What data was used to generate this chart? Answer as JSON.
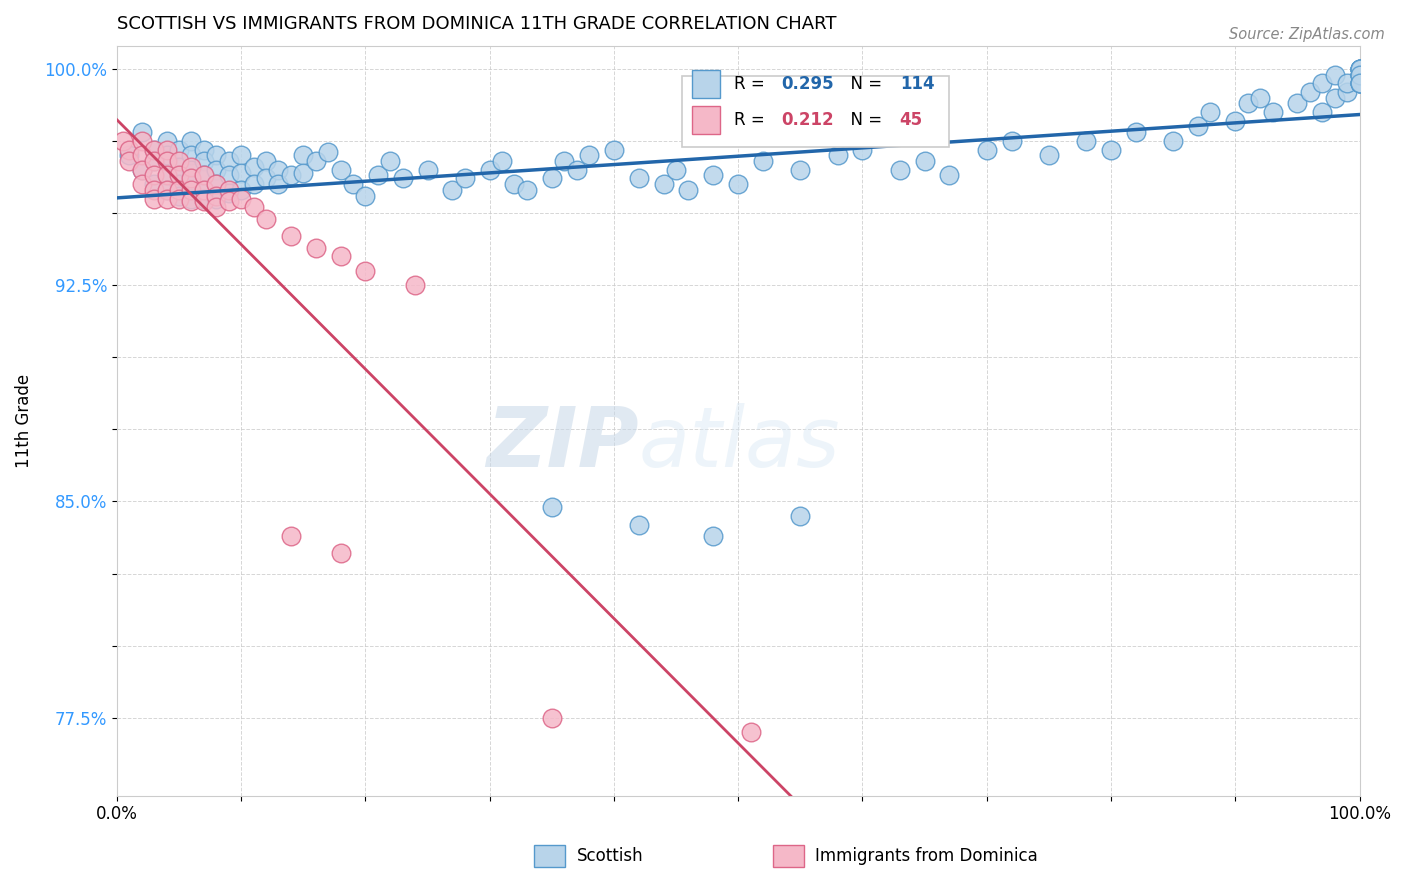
{
  "title": "SCOTTISH VS IMMIGRANTS FROM DOMINICA 11TH GRADE CORRELATION CHART",
  "source_text": "Source: ZipAtlas.com",
  "ylabel": "11th Grade",
  "xlim": [
    0.0,
    1.0
  ],
  "ylim": [
    0.748,
    1.008
  ],
  "ytick_vals": [
    0.775,
    0.8,
    0.825,
    0.85,
    0.875,
    0.9,
    0.925,
    0.95,
    0.975,
    1.0
  ],
  "ytick_labels": [
    "77.5%",
    "",
    "",
    "85.0%",
    "",
    "",
    "92.5%",
    "",
    "",
    "100.0%"
  ],
  "legend_blue_label": "Scottish",
  "legend_pink_label": "Immigrants from Dominica",
  "r_blue": 0.295,
  "n_blue": 114,
  "r_pink": 0.212,
  "n_pink": 45,
  "blue_color": "#b8d4ea",
  "blue_edge_color": "#5599cc",
  "blue_line_color": "#2266aa",
  "pink_color": "#f5b8c8",
  "pink_edge_color": "#dd6688",
  "pink_line_color": "#cc4466",
  "watermark_zip": "ZIP",
  "watermark_atlas": "atlas",
  "blue_scatter_x": [
    0.01,
    0.02,
    0.02,
    0.03,
    0.03,
    0.03,
    0.04,
    0.04,
    0.04,
    0.04,
    0.05,
    0.05,
    0.05,
    0.05,
    0.06,
    0.06,
    0.06,
    0.06,
    0.06,
    0.07,
    0.07,
    0.07,
    0.07,
    0.07,
    0.08,
    0.08,
    0.08,
    0.08,
    0.09,
    0.09,
    0.09,
    0.1,
    0.1,
    0.1,
    0.11,
    0.11,
    0.12,
    0.12,
    0.13,
    0.13,
    0.14,
    0.15,
    0.15,
    0.16,
    0.17,
    0.18,
    0.19,
    0.2,
    0.21,
    0.22,
    0.23,
    0.25,
    0.27,
    0.28,
    0.3,
    0.31,
    0.32,
    0.33,
    0.35,
    0.36,
    0.37,
    0.38,
    0.4,
    0.42,
    0.44,
    0.45,
    0.46,
    0.48,
    0.5,
    0.52,
    0.55,
    0.58,
    0.6,
    0.63,
    0.65,
    0.67,
    0.7,
    0.72,
    0.75,
    0.78,
    0.8,
    0.82,
    0.85,
    0.87,
    0.88,
    0.9,
    0.91,
    0.92,
    0.93,
    0.95,
    0.96,
    0.97,
    0.97,
    0.98,
    0.98,
    0.99,
    0.99,
    1.0,
    1.0,
    1.0,
    1.0,
    1.0,
    1.0,
    1.0,
    1.0,
    1.0,
    1.0,
    1.0,
    1.0,
    1.0,
    0.35,
    0.42,
    0.48,
    0.55
  ],
  "blue_scatter_y": [
    0.97,
    0.978,
    0.965,
    0.972,
    0.968,
    0.96,
    0.975,
    0.97,
    0.963,
    0.958,
    0.972,
    0.966,
    0.96,
    0.956,
    0.975,
    0.97,
    0.965,
    0.96,
    0.955,
    0.972,
    0.968,
    0.963,
    0.958,
    0.955,
    0.97,
    0.965,
    0.96,
    0.955,
    0.968,
    0.963,
    0.957,
    0.97,
    0.964,
    0.958,
    0.966,
    0.96,
    0.968,
    0.962,
    0.965,
    0.96,
    0.963,
    0.97,
    0.964,
    0.968,
    0.971,
    0.965,
    0.96,
    0.956,
    0.963,
    0.968,
    0.962,
    0.965,
    0.958,
    0.962,
    0.965,
    0.968,
    0.96,
    0.958,
    0.962,
    0.968,
    0.965,
    0.97,
    0.972,
    0.962,
    0.96,
    0.965,
    0.958,
    0.963,
    0.96,
    0.968,
    0.965,
    0.97,
    0.972,
    0.965,
    0.968,
    0.963,
    0.972,
    0.975,
    0.97,
    0.975,
    0.972,
    0.978,
    0.975,
    0.98,
    0.985,
    0.982,
    0.988,
    0.99,
    0.985,
    0.988,
    0.992,
    0.985,
    0.995,
    0.99,
    0.998,
    0.992,
    0.995,
    1.0,
    0.998,
    0.995,
    1.0,
    0.998,
    1.0,
    0.995,
    0.998,
    1.0,
    0.995,
    1.0,
    0.998,
    0.995,
    0.848,
    0.842,
    0.838,
    0.845
  ],
  "pink_scatter_x": [
    0.005,
    0.01,
    0.01,
    0.02,
    0.02,
    0.02,
    0.02,
    0.03,
    0.03,
    0.03,
    0.03,
    0.03,
    0.04,
    0.04,
    0.04,
    0.04,
    0.04,
    0.05,
    0.05,
    0.05,
    0.05,
    0.06,
    0.06,
    0.06,
    0.06,
    0.07,
    0.07,
    0.07,
    0.08,
    0.08,
    0.08,
    0.09,
    0.09,
    0.1,
    0.11,
    0.12,
    0.14,
    0.16,
    0.18,
    0.2,
    0.24,
    0.14,
    0.18,
    0.35,
    0.51
  ],
  "pink_scatter_y": [
    0.975,
    0.972,
    0.968,
    0.975,
    0.97,
    0.965,
    0.96,
    0.972,
    0.968,
    0.963,
    0.958,
    0.955,
    0.972,
    0.968,
    0.963,
    0.958,
    0.955,
    0.968,
    0.963,
    0.958,
    0.955,
    0.966,
    0.962,
    0.958,
    0.954,
    0.963,
    0.958,
    0.954,
    0.96,
    0.956,
    0.952,
    0.958,
    0.954,
    0.955,
    0.952,
    0.948,
    0.942,
    0.938,
    0.935,
    0.93,
    0.925,
    0.838,
    0.832,
    0.775,
    0.77
  ]
}
